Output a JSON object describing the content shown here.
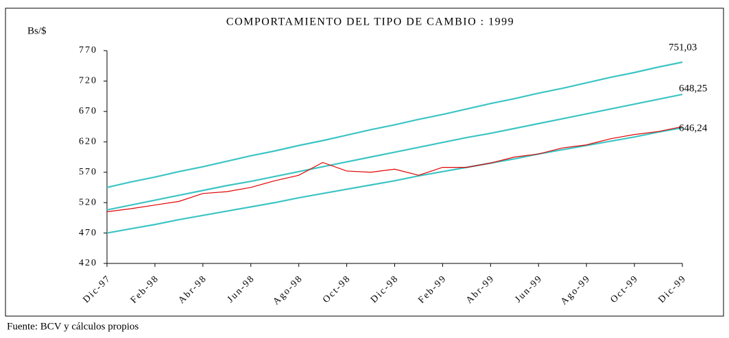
{
  "chart_data": {
    "type": "line",
    "title": "COMPORTAMIENTO DEL TIPO DE CAMBIO : 1999",
    "y_label": "Bs/$",
    "source": "Fuente: BCV y cálculos propios",
    "categories": [
      "Dic-97",
      null,
      "Feb-98",
      null,
      "Abr-98",
      null,
      "Jun-98",
      null,
      "Ago-98",
      null,
      "Oct-98",
      null,
      "Dic-98",
      null,
      "Feb-99",
      null,
      "Abr-99",
      null,
      "Jun-99",
      null,
      "Ago-99",
      null,
      "Oct-99",
      null,
      "Dic-99"
    ],
    "series": [
      {
        "color": "#3cc4c4",
        "values": [
          545,
          554,
          562,
          571,
          579,
          588,
          597,
          605,
          614,
          622,
          631,
          640,
          648,
          657,
          665,
          674,
          683,
          691,
          700,
          708,
          717,
          726,
          734,
          743,
          751
        ]
      },
      {
        "color": "#3cc4c4",
        "values": [
          508,
          516,
          524,
          532,
          540,
          548,
          555,
          563,
          571,
          579,
          587,
          595,
          603,
          611,
          619,
          627,
          634,
          642,
          650,
          658,
          666,
          674,
          682,
          690,
          698
        ]
      },
      {
        "color": "#3cc4c4",
        "values": [
          470,
          477,
          484,
          492,
          499,
          506,
          513,
          520,
          528,
          535,
          542,
          549,
          556,
          564,
          571,
          578,
          585,
          592,
          600,
          607,
          614,
          621,
          628,
          636,
          643
        ]
      },
      {
        "color": "#e00000",
        "values": [
          505,
          510,
          516,
          522,
          535,
          538,
          545,
          556,
          565,
          586,
          572,
          570,
          575,
          565,
          578,
          578,
          585,
          595,
          600,
          610,
          615,
          625,
          632,
          637,
          645
        ]
      }
    ],
    "annotations": [
      "751,03",
      "648,25",
      "646,24"
    ],
    "ylim": [
      420,
      770
    ],
    "yticks": [
      420,
      470,
      520,
      570,
      620,
      670,
      720,
      770
    ]
  }
}
